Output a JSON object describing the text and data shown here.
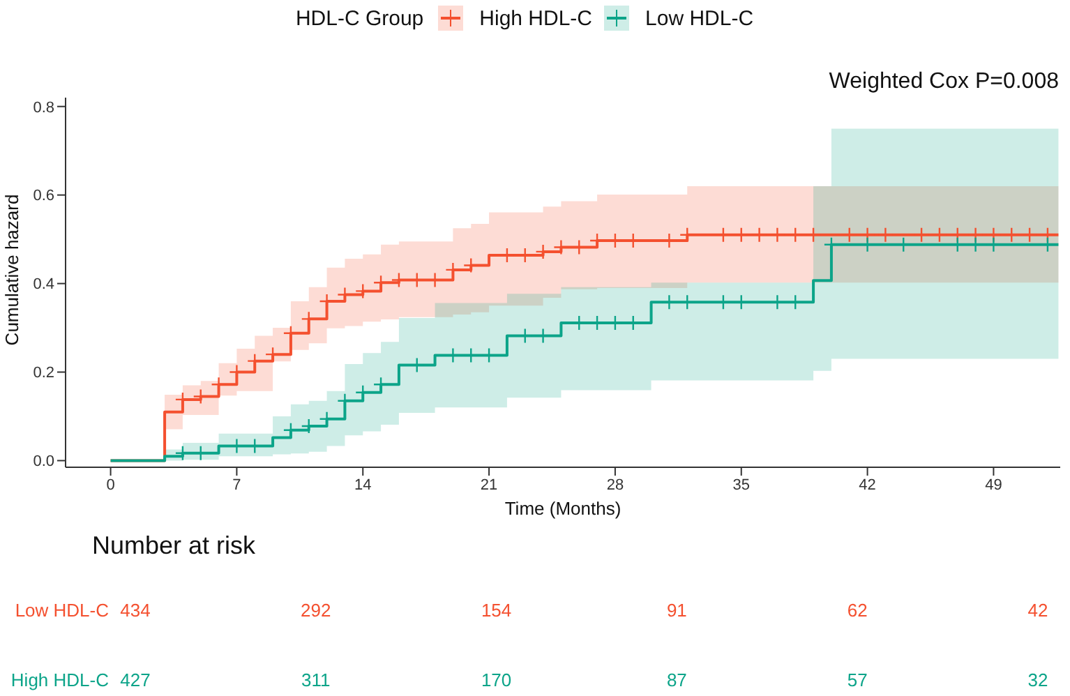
{
  "chart_data": {
    "type": "step",
    "xlabel": "Time (Months)",
    "ylabel": "Cumulative hazard",
    "legend_title": "HDL-C Group",
    "legend": "top",
    "grid": false,
    "line_style": "solid",
    "xlim": [
      -2.5,
      52.7
    ],
    "xticks": [
      0,
      7,
      14,
      21,
      28,
      35,
      42,
      49
    ],
    "ylim": [
      -0.015,
      0.82
    ],
    "yticks": [
      {
        "value": 0,
        "label": "0.0"
      },
      0.2,
      0.4,
      0.6,
      0.8
    ],
    "annotations": [
      "Weighted Cox P=0.008",
      "Number at risk",
      "Low HDL-C",
      "434",
      "292",
      "154",
      "91",
      "62",
      "42",
      "High HDL-C",
      "427",
      "311",
      "170",
      "87",
      "57",
      "32"
    ],
    "series": [
      {
        "name": "High HDL-C",
        "color": "#f4502f",
        "x": [
          0,
          3,
          4,
          5,
          6,
          7,
          8,
          9,
          10,
          11,
          12,
          13,
          14,
          15,
          16,
          19,
          20,
          21,
          24,
          25,
          27,
          32,
          52.6
        ],
        "values": [
          0,
          0.11,
          0.138,
          0.145,
          0.172,
          0.2,
          0.225,
          0.24,
          0.288,
          0.32,
          0.36,
          0.375,
          0.383,
          0.402,
          0.408,
          0.431,
          0.441,
          0.464,
          0.472,
          0.482,
          0.497,
          0.51,
          0.51
        ],
        "lower": [
          0,
          0.071,
          0.103,
          0.103,
          0.147,
          0.157,
          0.157,
          0.224,
          0.25,
          0.265,
          0.299,
          0.304,
          0.314,
          0.319,
          0.324,
          0.33,
          0.335,
          0.35,
          0.368,
          0.387,
          0.39,
          0.402,
          0.402
        ],
        "upper": [
          0,
          0.149,
          0.17,
          0.18,
          0.22,
          0.253,
          0.282,
          0.3,
          0.36,
          0.392,
          0.436,
          0.456,
          0.466,
          0.488,
          0.495,
          0.525,
          0.535,
          0.561,
          0.574,
          0.586,
          0.601,
          0.62,
          0.62
        ]
      },
      {
        "name": "Low HDL-C",
        "color": "#0ca489",
        "x": [
          0,
          3,
          4,
          6,
          9,
          10,
          11,
          12,
          13,
          14,
          15,
          16,
          18,
          22,
          25,
          30,
          39,
          40,
          52.6
        ],
        "values": [
          0,
          0.01,
          0.017,
          0.033,
          0.052,
          0.069,
          0.078,
          0.094,
          0.135,
          0.154,
          0.172,
          0.216,
          0.238,
          0.282,
          0.311,
          0.358,
          0.407,
          0.488,
          0.488
        ],
        "lower": [
          0,
          0,
          0.002,
          0.01,
          0.014,
          0.016,
          0.02,
          0.033,
          0.057,
          0.066,
          0.081,
          0.108,
          0.12,
          0.142,
          0.159,
          0.181,
          0.203,
          0.23,
          0.23
        ],
        "upper": [
          0,
          0.025,
          0.04,
          0.061,
          0.1,
          0.127,
          0.135,
          0.157,
          0.218,
          0.243,
          0.268,
          0.322,
          0.356,
          0.377,
          0.392,
          0.402,
          0.62,
          0.75,
          0.75
        ]
      },
      {
        "type": "scatter",
        "marker": "cross",
        "color": "#f4502f",
        "x": [
          4,
          5,
          6,
          7,
          8,
          9,
          10,
          11,
          12,
          13,
          14,
          15,
          16,
          17,
          18,
          19,
          20,
          22,
          23,
          24,
          25,
          26,
          27,
          28,
          29,
          31,
          32,
          34,
          35,
          36,
          37,
          38,
          39,
          41,
          42,
          43,
          45,
          46,
          47,
          48,
          49,
          50,
          51,
          52
        ],
        "values": [
          0.138,
          0.145,
          0.172,
          0.2,
          0.225,
          0.24,
          0.288,
          0.32,
          0.36,
          0.375,
          0.383,
          0.402,
          0.408,
          0.408,
          0.408,
          0.431,
          0.441,
          0.464,
          0.464,
          0.472,
          0.482,
          0.482,
          0.497,
          0.497,
          0.497,
          0.497,
          0.51,
          0.51,
          0.51,
          0.51,
          0.51,
          0.51,
          0.51,
          0.51,
          0.51,
          0.51,
          0.51,
          0.51,
          0.51,
          0.51,
          0.51,
          0.51,
          0.51,
          0.51
        ]
      },
      {
        "type": "scatter",
        "marker": "cross",
        "color": "#0ca489",
        "x": [
          4,
          5,
          7,
          8,
          10,
          11,
          12,
          13,
          14,
          15,
          17,
          19,
          20,
          21,
          23,
          24,
          26,
          27,
          28,
          29,
          31,
          32,
          34,
          35,
          37,
          38,
          40,
          42,
          44,
          47,
          48,
          49,
          52
        ],
        "values": [
          0.017,
          0.017,
          0.033,
          0.033,
          0.069,
          0.078,
          0.094,
          0.135,
          0.154,
          0.172,
          0.216,
          0.238,
          0.238,
          0.238,
          0.282,
          0.282,
          0.311,
          0.311,
          0.311,
          0.311,
          0.358,
          0.358,
          0.358,
          0.358,
          0.358,
          0.358,
          0.488,
          0.488,
          0.488,
          0.488,
          0.488,
          0.488,
          0.488
        ]
      }
    ]
  }
}
